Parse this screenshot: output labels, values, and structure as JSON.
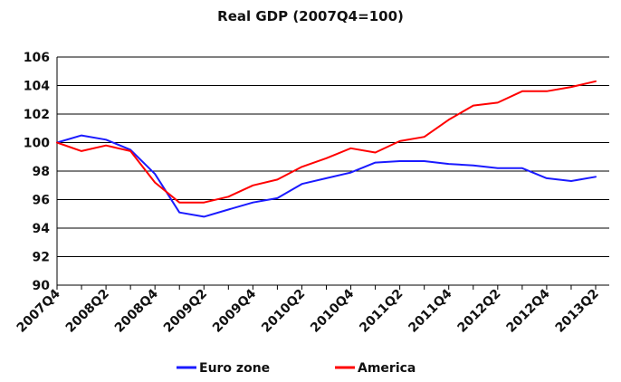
{
  "chart_data": {
    "type": "line",
    "title": "Real GDP (2007Q4=100)",
    "xlabel": "",
    "ylabel": "",
    "ylim": [
      90,
      106
    ],
    "yticks": [
      90,
      92,
      94,
      96,
      98,
      100,
      102,
      104,
      106
    ],
    "ytick_labels": [
      "90",
      "92",
      "94",
      "96",
      "98",
      "100",
      "102",
      "104",
      "106"
    ],
    "x": [
      "2007Q4",
      "2008Q1",
      "2008Q2",
      "2008Q3",
      "2008Q4",
      "2009Q1",
      "2009Q2",
      "2009Q3",
      "2009Q4",
      "2010Q1",
      "2010Q2",
      "2010Q3",
      "2010Q4",
      "2011Q1",
      "2011Q2",
      "2011Q3",
      "2011Q4",
      "2012Q1",
      "2012Q2",
      "2012Q3",
      "2012Q4",
      "2013Q1",
      "2013Q2"
    ],
    "xtick_labels": [
      "2007Q4",
      "2008Q2",
      "2008Q4",
      "2009Q2",
      "2009Q4",
      "2010Q2",
      "2010Q4",
      "2011Q2",
      "2011Q4",
      "2012Q2",
      "2012Q4",
      "2013Q2"
    ],
    "grid": true,
    "legend_position": "bottom",
    "series": [
      {
        "name": "Euro zone",
        "color": "#1a1aff",
        "values": [
          100.0,
          100.5,
          100.2,
          99.5,
          97.8,
          95.1,
          94.8,
          95.3,
          95.8,
          96.1,
          97.1,
          97.5,
          97.9,
          98.6,
          98.7,
          98.7,
          98.5,
          98.4,
          98.2,
          98.2,
          97.5,
          97.3,
          97.6
        ]
      },
      {
        "name": "America",
        "color": "#ff0000",
        "values": [
          100.0,
          99.4,
          99.8,
          99.4,
          97.2,
          95.8,
          95.8,
          96.2,
          97.0,
          97.4,
          98.3,
          98.9,
          99.6,
          99.3,
          100.1,
          100.4,
          101.6,
          102.6,
          102.8,
          103.6,
          103.6,
          103.9,
          104.3
        ]
      }
    ]
  }
}
